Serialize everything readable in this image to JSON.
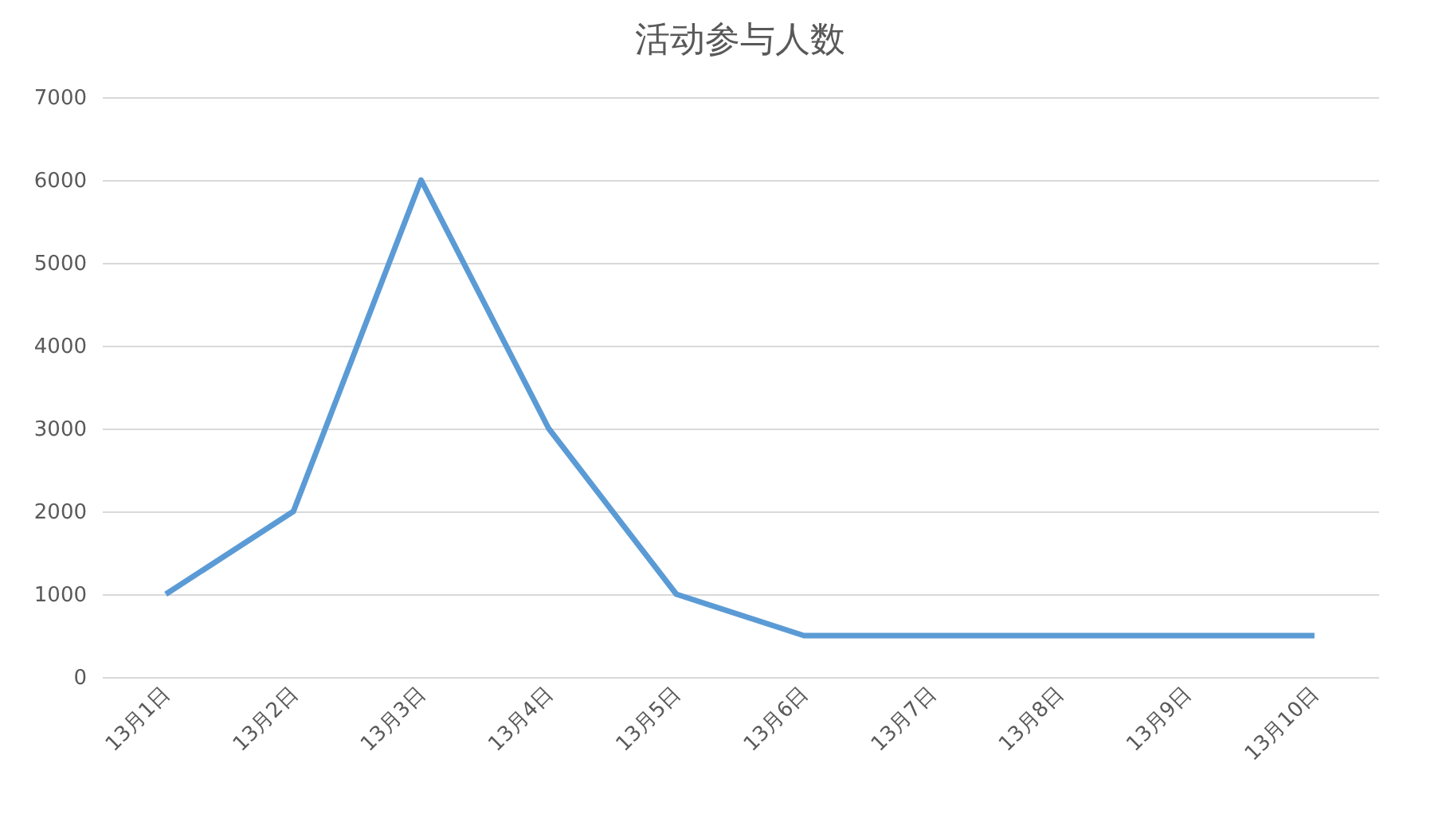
{
  "chart_data": {
    "type": "line",
    "title": "活动参与人数",
    "categories": [
      "13月1日",
      "13月2日",
      "13月3日",
      "13月4日",
      "13月5日",
      "13月6日",
      "13月7日",
      "13月8日",
      "13月9日",
      "13月10日"
    ],
    "series": [
      {
        "color": "#5b9bd5",
        "values": [
          1000,
          2000,
          6000,
          3000,
          1000,
          500,
          500,
          500,
          500,
          500
        ]
      }
    ],
    "ylim": [
      0,
      7000
    ],
    "yticks": [
      0,
      1000,
      2000,
      3000,
      4000,
      5000,
      6000,
      7000
    ],
    "grid": "y",
    "marker": "none",
    "line_style": "solid"
  }
}
